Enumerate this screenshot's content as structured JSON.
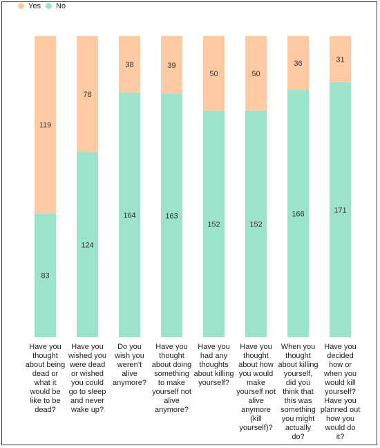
{
  "colors": {
    "yes": "#fdcaa4",
    "no": "#9de2cd",
    "text": "#333333"
  },
  "legend": [
    {
      "label": "Yes",
      "color": "#fdcaa4"
    },
    {
      "label": "No",
      "color": "#9de2cd"
    }
  ],
  "chart_data": {
    "type": "bar",
    "stacked": true,
    "normalized": true,
    "categories": [
      "Have you thought about being dead or what it would be like to be dead?",
      "Have you wished you were dead or wished you could go to sleep and never wake up?",
      "Do you wish you weren't alive anymore?",
      "Have you thought about doing something to make yourself not alive anymore?",
      "Have you had any thoughts about killing yourself?",
      "Have you thought about how you would make yourself not alive anymore (kill yourself)?",
      "When you thought about killing yourself, did you think that this was something you might actually do?",
      "Have you decided how or when you would kill yourself? Have you planned out how you would do it?"
    ],
    "series": [
      {
        "name": "Yes",
        "values": [
          119,
          78,
          38,
          39,
          50,
          50,
          36,
          31
        ]
      },
      {
        "name": "No",
        "values": [
          83,
          124,
          164,
          163,
          152,
          152,
          166,
          171
        ]
      }
    ],
    "legend_position": "top-left",
    "grid": false
  }
}
